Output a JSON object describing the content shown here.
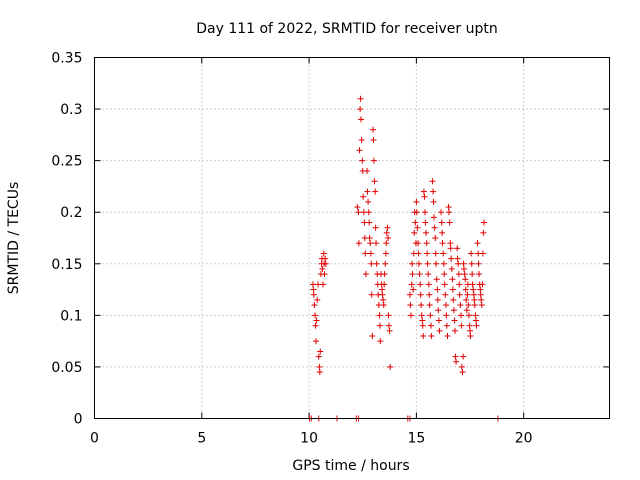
{
  "chart_data": {
    "type": "scatter",
    "title": "Day 111 of 2022, SRMTID for receiver uptn",
    "xlabel": "GPS time / hours",
    "ylabel": "SRMTID / TECUs",
    "xlim": [
      0,
      24
    ],
    "ylim": [
      0,
      0.35
    ],
    "xticks": [
      0,
      5,
      10,
      15,
      20
    ],
    "yticks": [
      0,
      0.05,
      0.1,
      0.15,
      0.2,
      0.25,
      0.3,
      0.35
    ],
    "xtick_labels": [
      "0",
      "5",
      "10",
      "15",
      "20"
    ],
    "ytick_labels": [
      "0",
      "0.05",
      "0.1",
      "0.15",
      "0.2",
      "0.25",
      "0.3",
      "0.35"
    ],
    "grid": true,
    "marker_color": "#e00000",
    "series": [
      {
        "name": "SRMTID",
        "points": [
          [
            10.02,
            0
          ],
          [
            10.1,
            0
          ],
          [
            10.45,
            0
          ],
          [
            11.3,
            0
          ],
          [
            12.2,
            0
          ],
          [
            12.3,
            0
          ],
          [
            14.6,
            0
          ],
          [
            14.7,
            0
          ],
          [
            18.8,
            0
          ],
          [
            10.18,
            0.13
          ],
          [
            10.2,
            0.125
          ],
          [
            10.22,
            0.12
          ],
          [
            10.25,
            0.11
          ],
          [
            10.28,
            0.1
          ],
          [
            10.3,
            0.09
          ],
          [
            10.32,
            0.075
          ],
          [
            10.35,
            0.095
          ],
          [
            10.38,
            0.115
          ],
          [
            10.42,
            0.13
          ],
          [
            10.45,
            0.06
          ],
          [
            10.48,
            0.05
          ],
          [
            10.5,
            0.045
          ],
          [
            10.52,
            0.065
          ],
          [
            10.55,
            0.14
          ],
          [
            10.58,
            0.15
          ],
          [
            10.6,
            0.155
          ],
          [
            10.62,
            0.145
          ],
          [
            10.65,
            0.13
          ],
          [
            10.68,
            0.16
          ],
          [
            10.7,
            0.15
          ],
          [
            10.72,
            0.14
          ],
          [
            10.75,
            0.155
          ],
          [
            10.78,
            0.15
          ],
          [
            12.25,
            0.205
          ],
          [
            12.3,
            0.2
          ],
          [
            12.32,
            0.17
          ],
          [
            12.35,
            0.26
          ],
          [
            12.38,
            0.3
          ],
          [
            12.4,
            0.31
          ],
          [
            12.42,
            0.29
          ],
          [
            12.45,
            0.27
          ],
          [
            12.48,
            0.25
          ],
          [
            12.5,
            0.24
          ],
          [
            12.52,
            0.215
          ],
          [
            12.55,
            0.2
          ],
          [
            12.58,
            0.19
          ],
          [
            12.6,
            0.175
          ],
          [
            12.62,
            0.16
          ],
          [
            12.65,
            0.14
          ],
          [
            12.7,
            0.24
          ],
          [
            12.72,
            0.22
          ],
          [
            12.75,
            0.21
          ],
          [
            12.78,
            0.2
          ],
          [
            12.8,
            0.19
          ],
          [
            12.82,
            0.175
          ],
          [
            12.85,
            0.17
          ],
          [
            12.88,
            0.16
          ],
          [
            12.9,
            0.15
          ],
          [
            12.92,
            0.12
          ],
          [
            12.95,
            0.08
          ],
          [
            12.98,
            0.28
          ],
          [
            13.0,
            0.27
          ],
          [
            13.02,
            0.25
          ],
          [
            13.05,
            0.23
          ],
          [
            13.08,
            0.22
          ],
          [
            13.1,
            0.185
          ],
          [
            13.12,
            0.17
          ],
          [
            13.15,
            0.15
          ],
          [
            13.18,
            0.14
          ],
          [
            13.2,
            0.13
          ],
          [
            13.22,
            0.12
          ],
          [
            13.25,
            0.11
          ],
          [
            13.28,
            0.1
          ],
          [
            13.3,
            0.09
          ],
          [
            13.32,
            0.075
          ],
          [
            13.35,
            0.14
          ],
          [
            13.38,
            0.13
          ],
          [
            13.4,
            0.125
          ],
          [
            13.42,
            0.12
          ],
          [
            13.45,
            0.115
          ],
          [
            13.48,
            0.11
          ],
          [
            13.5,
            0.13
          ],
          [
            13.52,
            0.14
          ],
          [
            13.55,
            0.15
          ],
          [
            13.58,
            0.16
          ],
          [
            13.6,
            0.17
          ],
          [
            13.62,
            0.18
          ],
          [
            13.65,
            0.185
          ],
          [
            13.68,
            0.175
          ],
          [
            13.7,
            0.1
          ],
          [
            13.72,
            0.09
          ],
          [
            13.75,
            0.085
          ],
          [
            13.78,
            0.05
          ],
          [
            14.7,
            0.12
          ],
          [
            14.72,
            0.11
          ],
          [
            14.75,
            0.1
          ],
          [
            14.78,
            0.13
          ],
          [
            14.8,
            0.15
          ],
          [
            14.82,
            0.14
          ],
          [
            14.85,
            0.125
          ],
          [
            14.88,
            0.16
          ],
          [
            14.9,
            0.18
          ],
          [
            14.92,
            0.2
          ],
          [
            14.95,
            0.19
          ],
          [
            14.98,
            0.17
          ],
          [
            15.0,
            0.21
          ],
          [
            15.02,
            0.2
          ],
          [
            15.05,
            0.185
          ],
          [
            15.08,
            0.17
          ],
          [
            15.1,
            0.16
          ],
          [
            15.12,
            0.15
          ],
          [
            15.15,
            0.14
          ],
          [
            15.18,
            0.13
          ],
          [
            15.2,
            0.12
          ],
          [
            15.22,
            0.11
          ],
          [
            15.25,
            0.1
          ],
          [
            15.28,
            0.095
          ],
          [
            15.3,
            0.09
          ],
          [
            15.32,
            0.08
          ],
          [
            15.35,
            0.22
          ],
          [
            15.38,
            0.215
          ],
          [
            15.4,
            0.2
          ],
          [
            15.42,
            0.19
          ],
          [
            15.45,
            0.18
          ],
          [
            15.48,
            0.17
          ],
          [
            15.5,
            0.16
          ],
          [
            15.52,
            0.15
          ],
          [
            15.55,
            0.14
          ],
          [
            15.58,
            0.13
          ],
          [
            15.6,
            0.12
          ],
          [
            15.62,
            0.11
          ],
          [
            15.65,
            0.1
          ],
          [
            15.68,
            0.09
          ],
          [
            15.7,
            0.08
          ],
          [
            15.75,
            0.23
          ],
          [
            15.78,
            0.22
          ],
          [
            15.8,
            0.21
          ],
          [
            15.82,
            0.195
          ],
          [
            15.85,
            0.185
          ],
          [
            15.88,
            0.175
          ],
          [
            15.9,
            0.16
          ],
          [
            15.92,
            0.15
          ],
          [
            15.95,
            0.135
          ],
          [
            15.98,
            0.125
          ],
          [
            16.0,
            0.115
          ],
          [
            16.02,
            0.105
          ],
          [
            16.05,
            0.095
          ],
          [
            16.08,
            0.085
          ],
          [
            16.15,
            0.2
          ],
          [
            16.18,
            0.19
          ],
          [
            16.2,
            0.18
          ],
          [
            16.22,
            0.17
          ],
          [
            16.25,
            0.16
          ],
          [
            16.28,
            0.15
          ],
          [
            16.3,
            0.14
          ],
          [
            16.32,
            0.13
          ],
          [
            16.35,
            0.12
          ],
          [
            16.38,
            0.11
          ],
          [
            16.4,
            0.1
          ],
          [
            16.42,
            0.09
          ],
          [
            16.45,
            0.08
          ],
          [
            16.5,
            0.205
          ],
          [
            16.52,
            0.2
          ],
          [
            16.55,
            0.19
          ],
          [
            16.58,
            0.17
          ],
          [
            16.6,
            0.165
          ],
          [
            16.62,
            0.155
          ],
          [
            16.65,
            0.145
          ],
          [
            16.68,
            0.135
          ],
          [
            16.7,
            0.125
          ],
          [
            16.72,
            0.115
          ],
          [
            16.75,
            0.105
          ],
          [
            16.78,
            0.095
          ],
          [
            16.8,
            0.085
          ],
          [
            16.82,
            0.06
          ],
          [
            16.85,
            0.055
          ],
          [
            16.9,
            0.165
          ],
          [
            16.92,
            0.155
          ],
          [
            16.95,
            0.15
          ],
          [
            16.98,
            0.14
          ],
          [
            17.0,
            0.13
          ],
          [
            17.02,
            0.12
          ],
          [
            17.05,
            0.11
          ],
          [
            17.08,
            0.1
          ],
          [
            17.1,
            0.09
          ],
          [
            17.12,
            0.05
          ],
          [
            17.15,
            0.045
          ],
          [
            17.18,
            0.06
          ],
          [
            17.2,
            0.15
          ],
          [
            17.22,
            0.145
          ],
          [
            17.25,
            0.14
          ],
          [
            17.28,
            0.135
          ],
          [
            17.3,
            0.125
          ],
          [
            17.32,
            0.115
          ],
          [
            17.35,
            0.105
          ],
          [
            17.38,
            0.12
          ],
          [
            17.4,
            0.13
          ],
          [
            17.42,
            0.11
          ],
          [
            17.45,
            0.1
          ],
          [
            17.48,
            0.09
          ],
          [
            17.5,
            0.085
          ],
          [
            17.52,
            0.08
          ],
          [
            17.55,
            0.16
          ],
          [
            17.58,
            0.15
          ],
          [
            17.6,
            0.14
          ],
          [
            17.62,
            0.13
          ],
          [
            17.65,
            0.125
          ],
          [
            17.68,
            0.12
          ],
          [
            17.7,
            0.115
          ],
          [
            17.72,
            0.11
          ],
          [
            17.75,
            0.1
          ],
          [
            17.78,
            0.095
          ],
          [
            17.8,
            0.09
          ],
          [
            17.85,
            0.17
          ],
          [
            17.88,
            0.16
          ],
          [
            17.9,
            0.15
          ],
          [
            17.92,
            0.14
          ],
          [
            17.95,
            0.13
          ],
          [
            17.98,
            0.125
          ],
          [
            18.0,
            0.12
          ],
          [
            18.02,
            0.115
          ],
          [
            18.05,
            0.11
          ],
          [
            18.08,
            0.13
          ],
          [
            18.1,
            0.16
          ],
          [
            18.12,
            0.18
          ],
          [
            18.15,
            0.19
          ]
        ]
      }
    ]
  }
}
